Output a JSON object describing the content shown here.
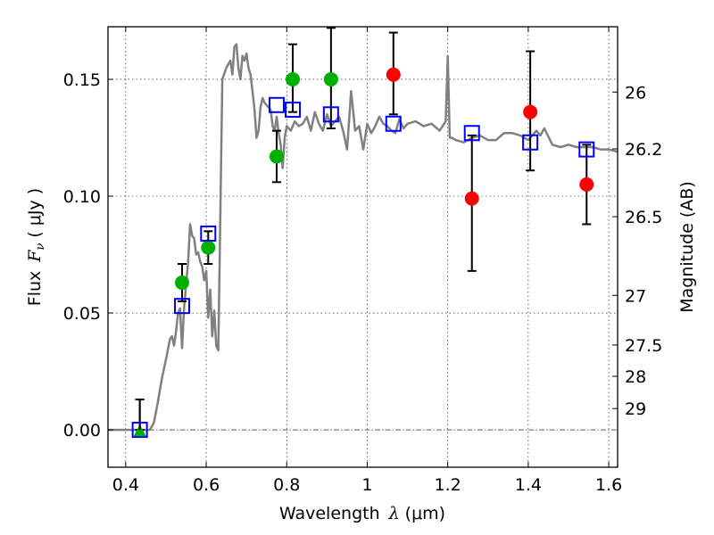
{
  "chart_data": {
    "type": "scatter",
    "title": "",
    "xlabel": "Wavelength",
    "xlabel_symbol": "λ",
    "xlabel_unit": "(μm)",
    "ylabel": "Flux",
    "ylabel_symbol": "F",
    "ylabel_subscript": "ν",
    "ylabel_unit": "( μJy )",
    "y2label": "Magnitude (AB)",
    "xlim": [
      0.356,
      1.622
    ],
    "ylim": [
      -0.016,
      0.1725
    ],
    "xticks": [
      0.4,
      0.6,
      0.8,
      1.0,
      1.2,
      1.4,
      1.6
    ],
    "xtick_labels": [
      "0.4",
      "0.6",
      "0.8",
      "1",
      "1.2",
      "1.4",
      "1.6"
    ],
    "yticks": [
      0.0,
      0.05,
      0.1,
      0.15
    ],
    "ytick_labels": [
      "0.00",
      "0.05",
      "0.10",
      "0.15"
    ],
    "y2ticks_mag": [
      26,
      26.2,
      26.5,
      27,
      27.5,
      28,
      29
    ],
    "y2tick_labels": [
      "26",
      "26.2",
      "26.5",
      "27",
      "27.5",
      "28",
      "29"
    ],
    "grid": true,
    "zero_line": true,
    "colors": {
      "model": "#808080",
      "model_photometry": "#0000ff",
      "detections": "#00b000",
      "red_points": "#ff0000",
      "errorbar": "#000000"
    },
    "series": [
      {
        "name": "model-spectrum",
        "kind": "line",
        "x": [
          0.356,
          0.46,
          0.47,
          0.48,
          0.49,
          0.5,
          0.51,
          0.515,
          0.52,
          0.525,
          0.53,
          0.535,
          0.54,
          0.545,
          0.55,
          0.555,
          0.56,
          0.565,
          0.57,
          0.575,
          0.58,
          0.585,
          0.59,
          0.595,
          0.6,
          0.605,
          0.61,
          0.615,
          0.62,
          0.625,
          0.63,
          0.635,
          0.64,
          0.65,
          0.66,
          0.665,
          0.67,
          0.675,
          0.68,
          0.685,
          0.69,
          0.695,
          0.7,
          0.705,
          0.71,
          0.715,
          0.72,
          0.725,
          0.73,
          0.735,
          0.74,
          0.745,
          0.75,
          0.755,
          0.76,
          0.765,
          0.77,
          0.775,
          0.78,
          0.785,
          0.79,
          0.795,
          0.8,
          0.81,
          0.82,
          0.83,
          0.84,
          0.85,
          0.86,
          0.87,
          0.88,
          0.89,
          0.9,
          0.91,
          0.92,
          0.93,
          0.94,
          0.95,
          0.96,
          0.97,
          0.98,
          0.99,
          1.0,
          1.01,
          1.02,
          1.03,
          1.04,
          1.05,
          1.06,
          1.07,
          1.08,
          1.09,
          1.1,
          1.12,
          1.14,
          1.16,
          1.18,
          1.195,
          1.2,
          1.205,
          1.21,
          1.22,
          1.24,
          1.26,
          1.28,
          1.3,
          1.32,
          1.34,
          1.36,
          1.38,
          1.4,
          1.42,
          1.43,
          1.44,
          1.46,
          1.48,
          1.5,
          1.52,
          1.54,
          1.56,
          1.58,
          1.6,
          1.622
        ],
        "y": [
          0.0,
          0.0,
          0.003,
          0.012,
          0.022,
          0.03,
          0.039,
          0.04,
          0.036,
          0.042,
          0.05,
          0.052,
          0.035,
          0.052,
          0.062,
          0.072,
          0.088,
          0.083,
          0.082,
          0.075,
          0.076,
          0.072,
          0.07,
          0.064,
          0.068,
          0.048,
          0.06,
          0.04,
          0.051,
          0.036,
          0.034,
          0.09,
          0.15,
          0.155,
          0.158,
          0.152,
          0.164,
          0.165,
          0.155,
          0.15,
          0.16,
          0.158,
          0.161,
          0.155,
          0.152,
          0.145,
          0.137,
          0.125,
          0.128,
          0.138,
          0.142,
          0.14,
          0.139,
          0.138,
          0.137,
          0.13,
          0.128,
          0.134,
          0.127,
          0.122,
          0.112,
          0.125,
          0.13,
          0.128,
          0.132,
          0.13,
          0.131,
          0.134,
          0.128,
          0.136,
          0.131,
          0.128,
          0.135,
          0.13,
          0.132,
          0.134,
          0.128,
          0.12,
          0.145,
          0.128,
          0.13,
          0.12,
          0.131,
          0.127,
          0.13,
          0.134,
          0.131,
          0.13,
          0.128,
          0.127,
          0.133,
          0.129,
          0.131,
          0.132,
          0.13,
          0.131,
          0.128,
          0.132,
          0.16,
          0.125,
          0.125,
          0.124,
          0.123,
          0.125,
          0.126,
          0.124,
          0.124,
          0.127,
          0.127,
          0.126,
          0.124,
          0.128,
          0.126,
          0.129,
          0.122,
          0.121,
          0.122,
          0.121,
          0.121,
          0.121,
          0.12,
          0.12,
          0.119
        ]
      },
      {
        "name": "model-photometry",
        "kind": "square",
        "x": [
          0.435,
          0.54,
          0.605,
          0.775,
          0.815,
          0.91,
          1.065,
          1.26,
          1.405,
          1.545
        ],
        "y": [
          0.0,
          0.053,
          0.084,
          0.139,
          0.137,
          0.135,
          0.131,
          0.127,
          0.123,
          0.12
        ]
      },
      {
        "name": "detections-green",
        "kind": "circle",
        "x": [
          0.54,
          0.605,
          0.775,
          0.815,
          0.91
        ],
        "y": [
          0.063,
          0.078,
          0.117,
          0.15,
          0.15
        ],
        "yerr_low": [
          0.055,
          0.071,
          0.106,
          0.136,
          0.129
        ],
        "yerr_high": [
          0.071,
          0.085,
          0.128,
          0.165,
          0.172
        ]
      },
      {
        "name": "upper-limit-green",
        "kind": "triangle",
        "x": [
          0.435
        ],
        "y": [
          0.0
        ],
        "yerr_low": [
          0.0
        ],
        "yerr_high": [
          0.013
        ]
      },
      {
        "name": "detections-red",
        "kind": "circle",
        "x": [
          1.065,
          1.26,
          1.405,
          1.545
        ],
        "y": [
          0.152,
          0.099,
          0.136,
          0.105
        ],
        "yerr_low": [
          0.135,
          0.068,
          0.111,
          0.088
        ],
        "yerr_high": [
          0.17,
          0.126,
          0.162,
          0.122
        ]
      }
    ]
  }
}
